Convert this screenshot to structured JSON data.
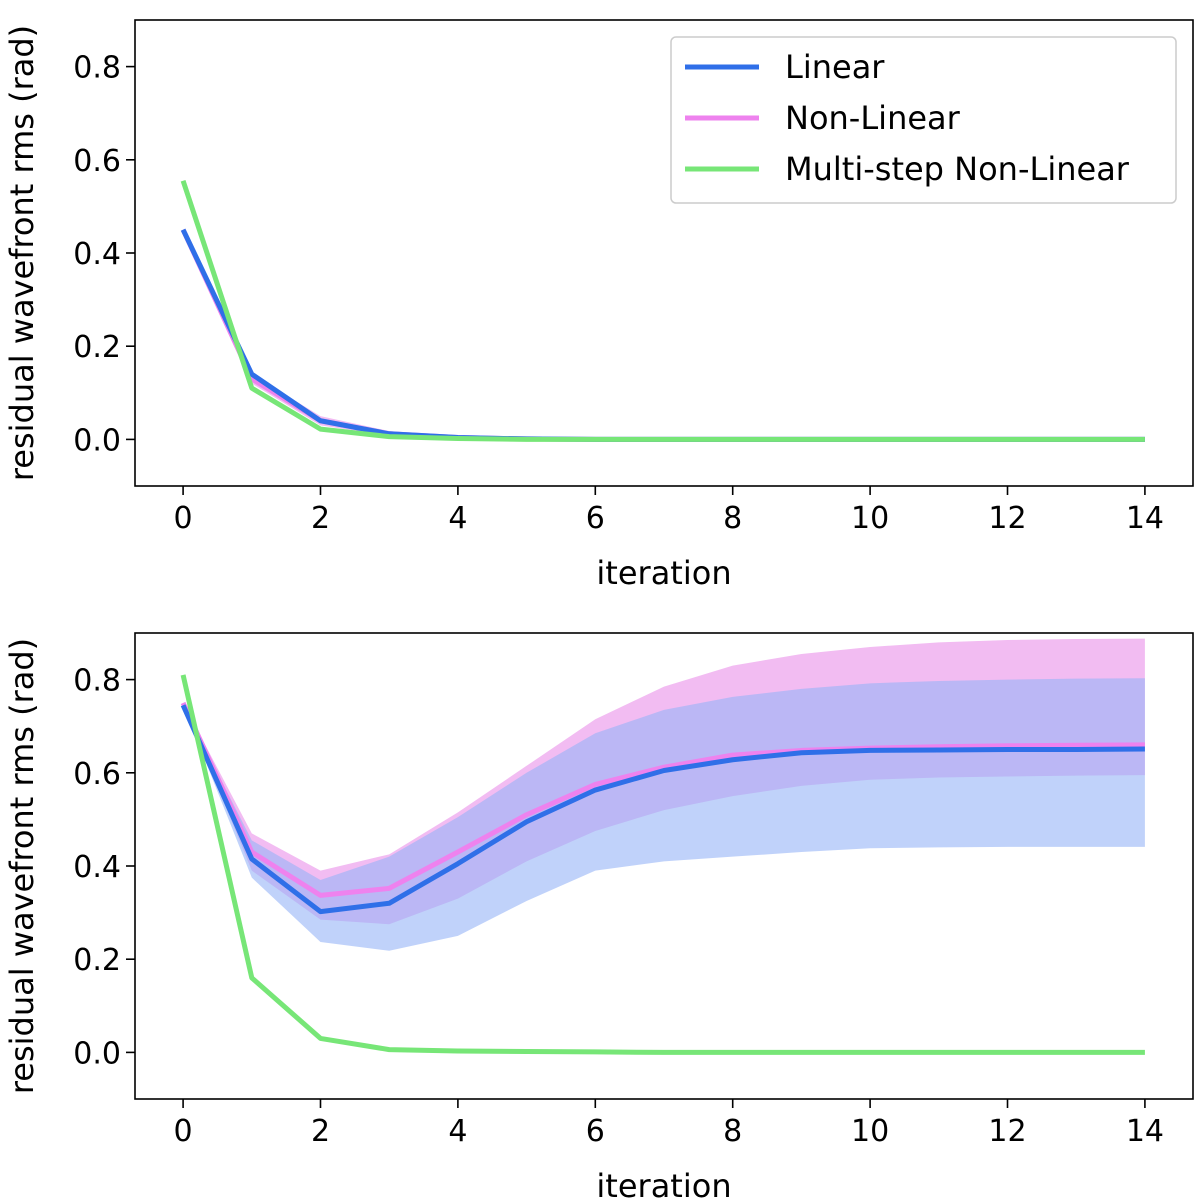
{
  "colors": {
    "linear": "#2f6fe8",
    "nonlinear": "#ee82ee",
    "multistep": "#77e677",
    "linear_band": "#96b4f6",
    "nonlinear_band": "#f2bcf2",
    "overlap_band": "#c39cf3"
  },
  "chart_data": [
    {
      "type": "line",
      "panel": "top",
      "title": "",
      "xlabel": "iteration",
      "ylabel": "residual wavefront rms (rad)",
      "xlim": [
        -0.7,
        14.7
      ],
      "ylim": [
        -0.1,
        0.9
      ],
      "xticks": [
        0,
        2,
        4,
        6,
        8,
        10,
        12,
        14
      ],
      "xtick_labels": [
        "0",
        "2",
        "4",
        "6",
        "8",
        "10",
        "12",
        "14"
      ],
      "yticks": [
        0.0,
        0.2,
        0.4,
        0.6,
        0.8
      ],
      "ytick_labels": [
        "0.0",
        "0.2",
        "0.4",
        "0.6",
        "0.8"
      ],
      "legend": {
        "position": "top-right",
        "entries": [
          "Linear",
          "Non-Linear",
          "Multi-step Non-Linear"
        ]
      },
      "x": [
        0,
        1,
        2,
        3,
        4,
        5,
        6,
        7,
        8,
        9,
        10,
        11,
        12,
        13,
        14
      ],
      "series": [
        {
          "name": "Linear",
          "color_key": "linear",
          "values": [
            0.45,
            0.14,
            0.04,
            0.012,
            0.004,
            0.001,
            0.0,
            0.0,
            0.0,
            0.0,
            0.0,
            0.0,
            0.0,
            0.0,
            0.0
          ]
        },
        {
          "name": "Non-Linear",
          "color_key": "nonlinear",
          "values": [
            0.45,
            0.13,
            0.04,
            0.012,
            0.004,
            0.001,
            0.0,
            0.0,
            0.0,
            0.0,
            0.0,
            0.0,
            0.0,
            0.0,
            0.0
          ],
          "band_upper": [
            0.45,
            0.14,
            0.05,
            0.018,
            0.006,
            0.002,
            0.0,
            0.0,
            0.0,
            0.0,
            0.0,
            0.0,
            0.0,
            0.0,
            0.0
          ],
          "band_lower": [
            0.45,
            0.12,
            0.03,
            0.008,
            0.002,
            0.0,
            0.0,
            0.0,
            0.0,
            0.0,
            0.0,
            0.0,
            0.0,
            0.0,
            0.0
          ]
        },
        {
          "name": "Multi-step Non-Linear",
          "color_key": "multistep",
          "values": [
            0.555,
            0.11,
            0.022,
            0.006,
            0.002,
            0.0,
            0.0,
            0.0,
            0.0,
            0.0,
            0.0,
            0.0,
            0.0,
            0.0,
            0.0
          ]
        }
      ]
    },
    {
      "type": "line",
      "panel": "bottom",
      "title": "",
      "xlabel": "iteration",
      "ylabel": "residual wavefront rms (rad)",
      "xlim": [
        -0.7,
        14.7
      ],
      "ylim": [
        -0.1,
        0.9
      ],
      "xticks": [
        0,
        2,
        4,
        6,
        8,
        10,
        12,
        14
      ],
      "xtick_labels": [
        "0",
        "2",
        "4",
        "6",
        "8",
        "10",
        "12",
        "14"
      ],
      "yticks": [
        0.0,
        0.2,
        0.4,
        0.6,
        0.8
      ],
      "ytick_labels": [
        "0.0",
        "0.2",
        "0.4",
        "0.6",
        "0.8"
      ],
      "x": [
        0,
        1,
        2,
        3,
        4,
        5,
        6,
        7,
        8,
        9,
        10,
        11,
        12,
        13,
        14
      ],
      "series": [
        {
          "name": "Linear",
          "color_key": "linear",
          "values": [
            0.745,
            0.415,
            0.302,
            0.32,
            0.405,
            0.495,
            0.563,
            0.605,
            0.628,
            0.643,
            0.648,
            0.649,
            0.65,
            0.65,
            0.651
          ],
          "band_upper": [
            0.745,
            0.455,
            0.37,
            0.42,
            0.505,
            0.6,
            0.685,
            0.735,
            0.763,
            0.78,
            0.792,
            0.797,
            0.8,
            0.802,
            0.803
          ],
          "band_lower": [
            0.745,
            0.375,
            0.237,
            0.218,
            0.25,
            0.325,
            0.39,
            0.41,
            0.42,
            0.43,
            0.438,
            0.44,
            0.441,
            0.441,
            0.441
          ]
        },
        {
          "name": "Non-Linear",
          "color_key": "nonlinear",
          "values": [
            0.75,
            0.43,
            0.337,
            0.352,
            0.43,
            0.51,
            0.575,
            0.612,
            0.638,
            0.648,
            0.653,
            0.656,
            0.658,
            0.659,
            0.66
          ],
          "band_upper": [
            0.75,
            0.47,
            0.39,
            0.425,
            0.515,
            0.615,
            0.715,
            0.785,
            0.83,
            0.855,
            0.87,
            0.88,
            0.885,
            0.887,
            0.888
          ],
          "band_lower": [
            0.75,
            0.39,
            0.285,
            0.275,
            0.33,
            0.41,
            0.475,
            0.52,
            0.55,
            0.572,
            0.585,
            0.59,
            0.592,
            0.594,
            0.595
          ]
        },
        {
          "name": "Multi-step Non-Linear",
          "color_key": "multistep",
          "values": [
            0.81,
            0.16,
            0.03,
            0.006,
            0.003,
            0.002,
            0.001,
            0.0,
            0.0,
            0.0,
            0.0,
            0.0,
            0.0,
            0.0,
            0.0
          ]
        }
      ]
    }
  ]
}
